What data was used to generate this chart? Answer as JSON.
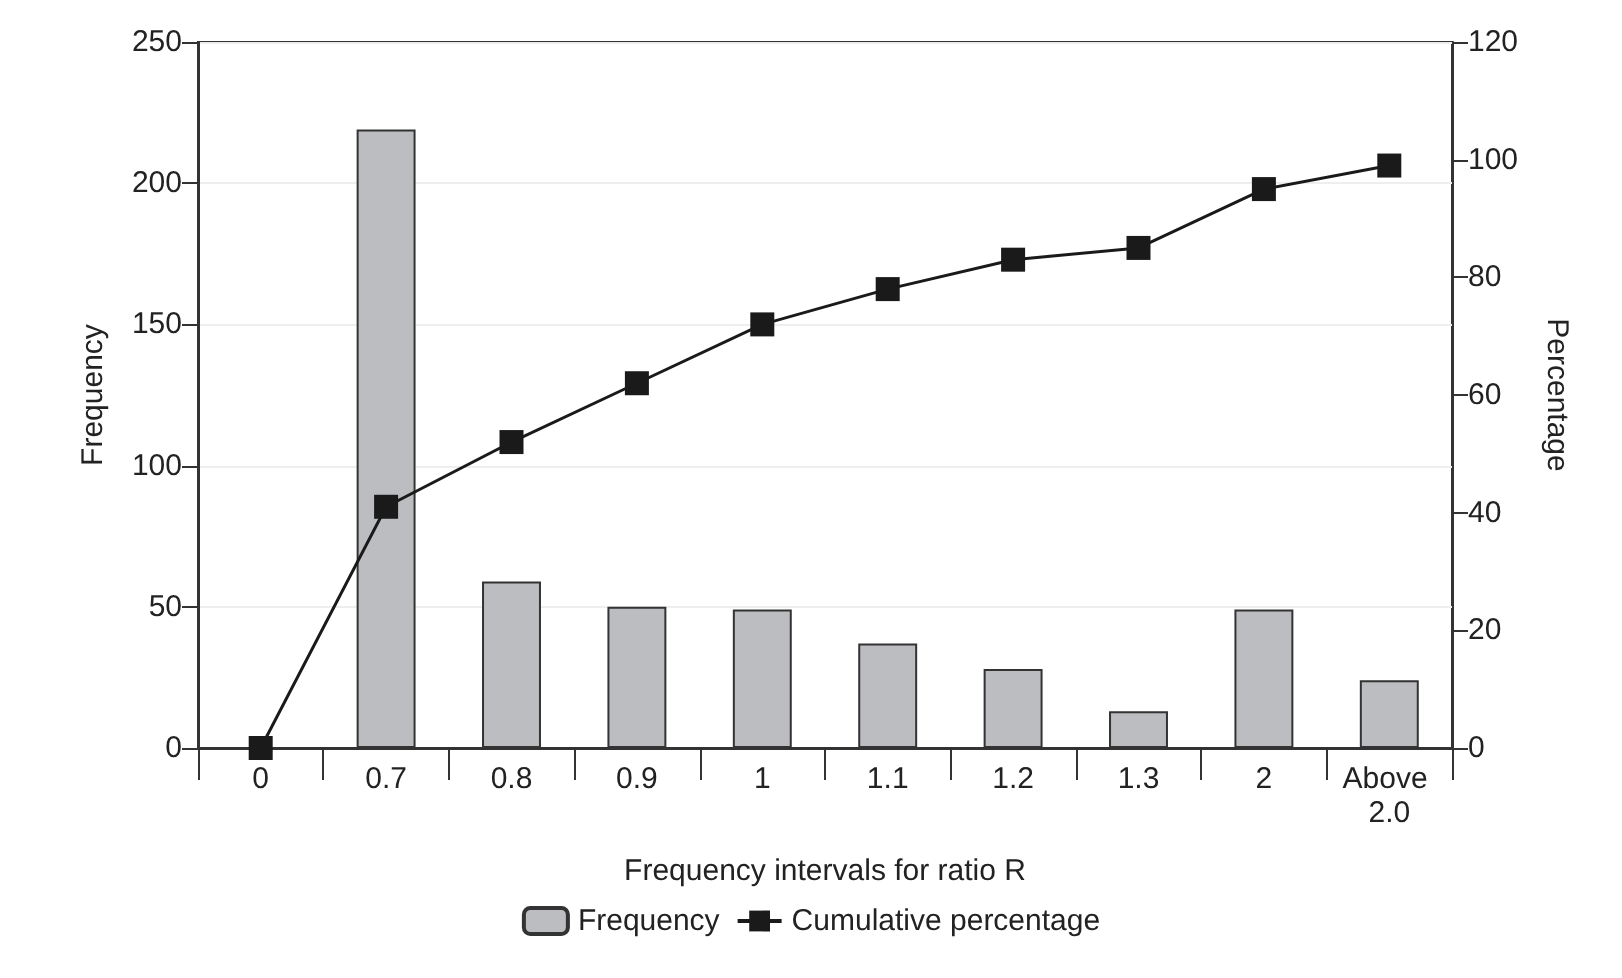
{
  "chart_data": {
    "type": "bar",
    "xlabel": "Frequency intervals for ratio R",
    "ylabel": "Frequency",
    "y2label": "Percentage",
    "categories": [
      "0",
      "0.7",
      "0.8",
      "0.9",
      "1",
      "1.1",
      "1.2",
      "1.3",
      "2",
      "Above 2.0"
    ],
    "series": [
      {
        "name": "Frequency",
        "color": "#bcbdc1",
        "values": [
          0,
          219,
          59,
          50,
          49,
          37,
          28,
          13,
          49,
          24
        ]
      },
      {
        "name": "Cumulative percentage",
        "type": "line",
        "axis": "y2",
        "color": "#1a1a1a",
        "marker": "square",
        "values": [
          0,
          41,
          52,
          62,
          72,
          78,
          83,
          85,
          95,
          99
        ]
      }
    ],
    "ylim": [
      0,
      250
    ],
    "yticks": [
      0,
      50,
      100,
      150,
      200,
      250
    ],
    "y2lim": [
      0,
      120
    ],
    "y2ticks": [
      0,
      20,
      40,
      60,
      80,
      100,
      120
    ],
    "grid": "y",
    "legend": "bottom"
  }
}
